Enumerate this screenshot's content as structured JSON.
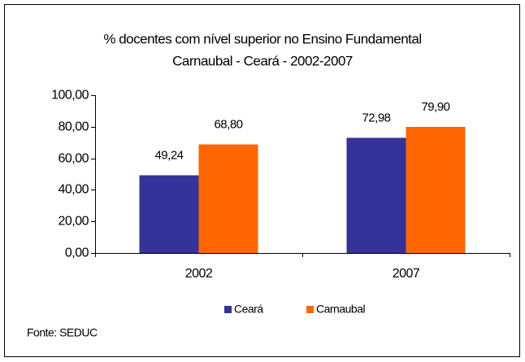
{
  "chart_data": {
    "type": "bar",
    "title": "% docentes com nível superior no Ensino Fundamental",
    "subtitle": "Carnaubal - Ceará - 2002-2007",
    "categories": [
      "2002",
      "2007"
    ],
    "series": [
      {
        "name": "Ceará",
        "color": "#333399",
        "values": [
          49.24,
          72.98
        ],
        "value_labels": [
          "49,24",
          "72,98"
        ]
      },
      {
        "name": "Carnaubal",
        "color": "#ff6600",
        "values": [
          68.8,
          79.9
        ],
        "value_labels": [
          "68,80",
          "79,90"
        ]
      }
    ],
    "ylim": [
      0,
      100
    ],
    "yticks": [
      {
        "value": 0,
        "label": "0,00"
      },
      {
        "value": 20,
        "label": "20,00"
      },
      {
        "value": 40,
        "label": "40,00"
      },
      {
        "value": 60,
        "label": "60,00"
      },
      {
        "value": 80,
        "label": "80,00"
      },
      {
        "value": 100,
        "label": "100,00"
      }
    ],
    "legend": "bottom",
    "source": "Fonte: SEDUC"
  }
}
